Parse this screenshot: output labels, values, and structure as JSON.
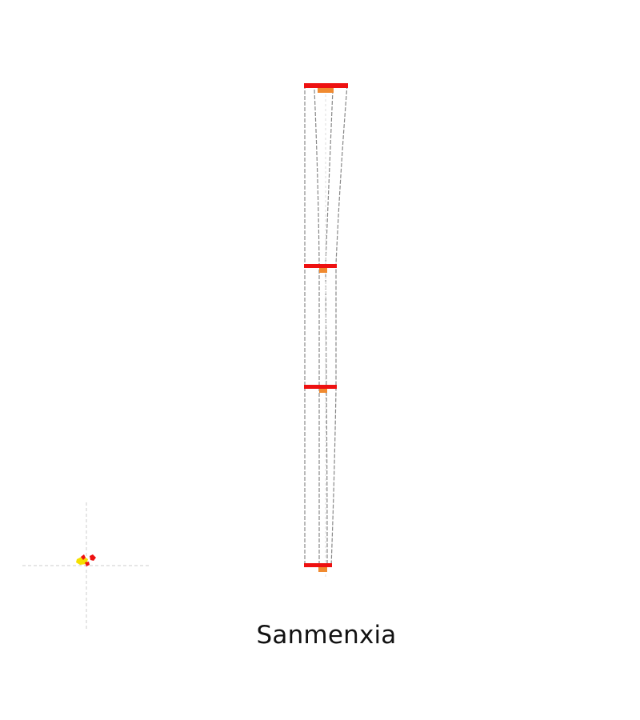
{
  "map": {
    "place_name": "Sanmenxia",
    "colors": {
      "background": "#ffffff",
      "bar": "#ee1111",
      "marker": "#f08a30",
      "outline": "#888888",
      "guide": "#cccccc",
      "detail_yellow": "#f5e000",
      "detail_red": "#ee1111"
    }
  }
}
